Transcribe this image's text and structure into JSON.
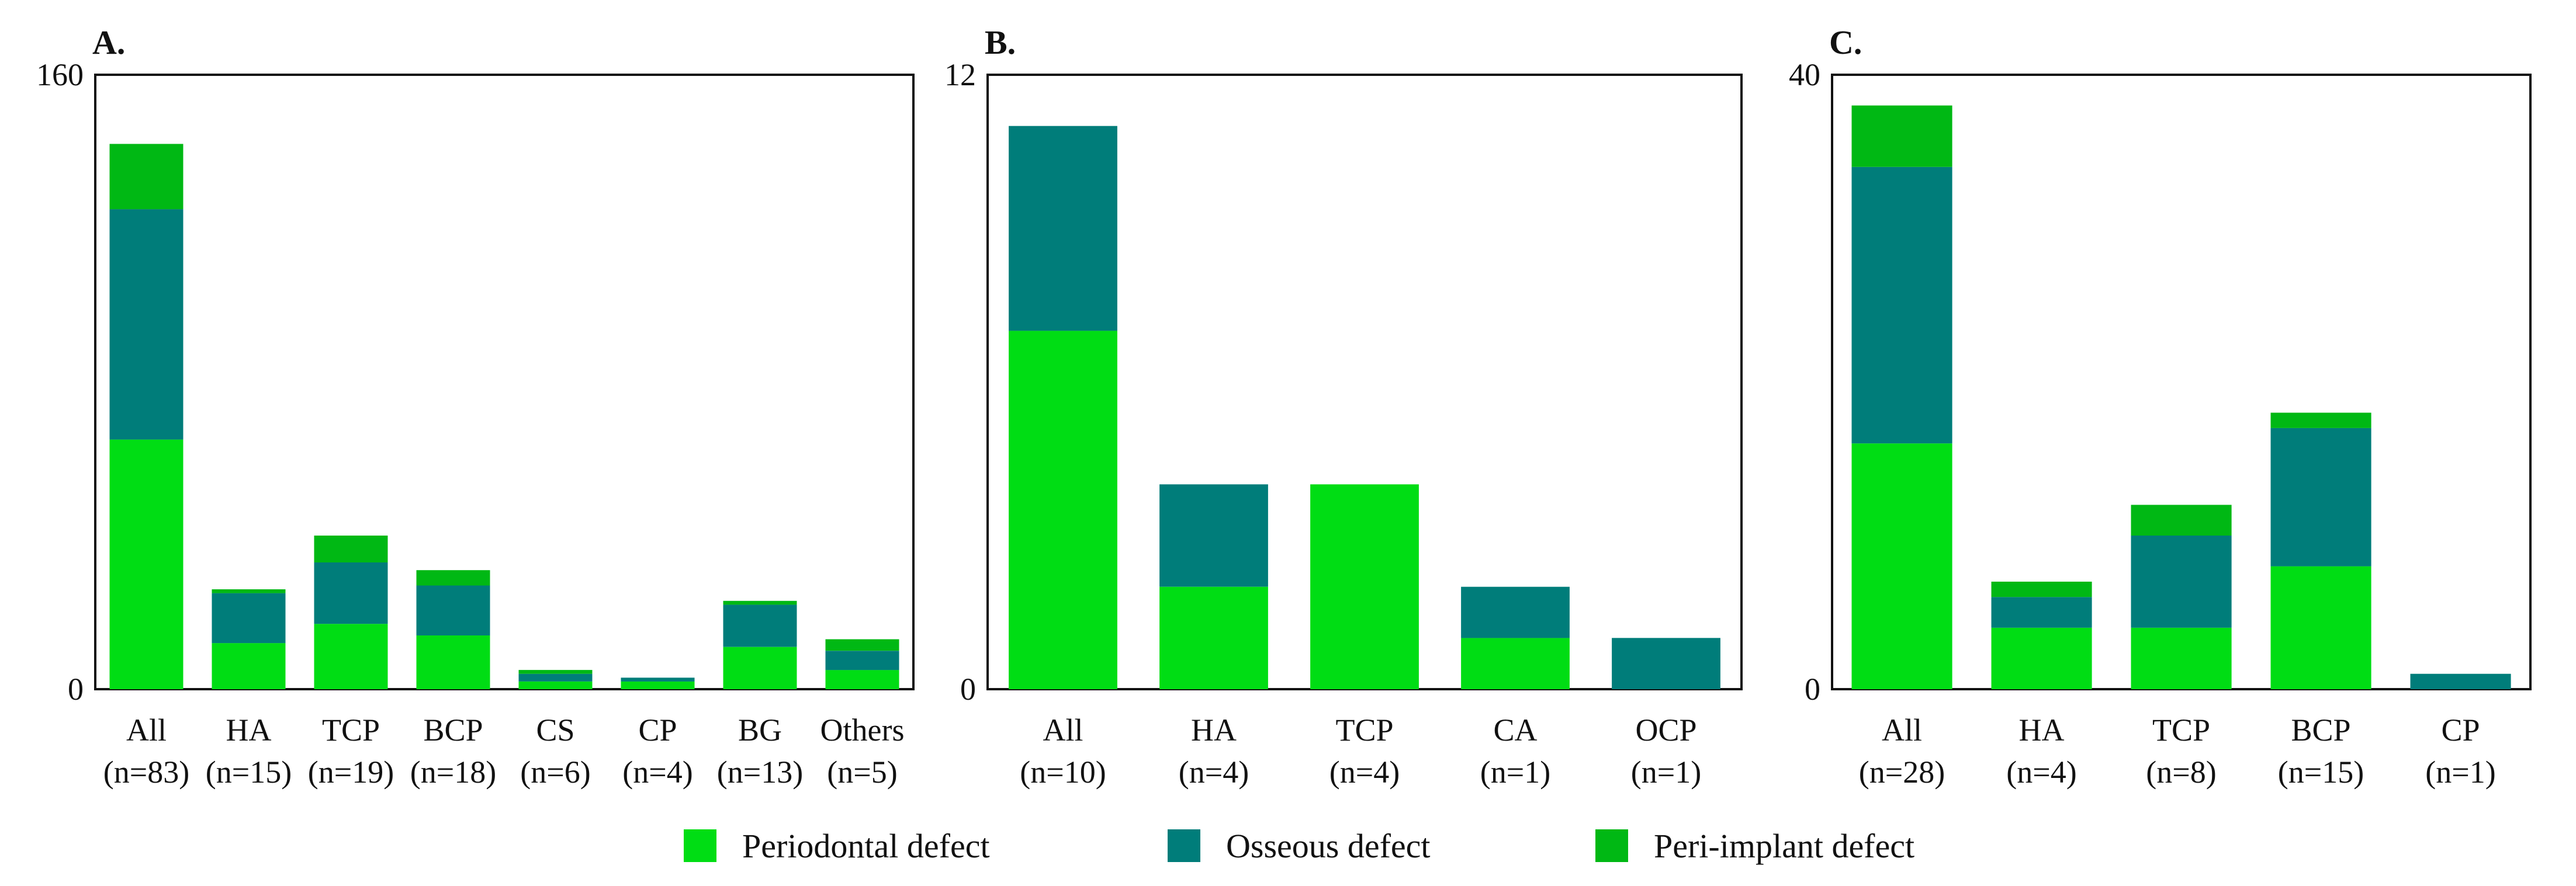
{
  "chart_data": [
    {
      "type": "bar",
      "stacked": true,
      "panel_label": "A.",
      "categories": [
        "All",
        "HA",
        "TCP",
        "BCP",
        "CS",
        "CP",
        "BG",
        "Others"
      ],
      "counts": [
        "(n=83)",
        "(n=15)",
        "(n=19)",
        "(n=18)",
        "(n=6)",
        "(n=4)",
        "(n=13)",
        "(n=5)"
      ],
      "series": [
        {
          "name": "Periodontal defect",
          "values": [
            65,
            12,
            17,
            14,
            2,
            2,
            11,
            5
          ]
        },
        {
          "name": "Osseous defect",
          "values": [
            60,
            13,
            16,
            13,
            2,
            1,
            11,
            5
          ]
        },
        {
          "name": "Peri-implant defect",
          "values": [
            17,
            1,
            7,
            4,
            1,
            0,
            1,
            3
          ]
        }
      ],
      "yticks": [
        "0",
        "160"
      ],
      "ylim": [
        0,
        160
      ]
    },
    {
      "type": "bar",
      "stacked": true,
      "panel_label": "B.",
      "categories": [
        "All",
        "HA",
        "TCP",
        "CA",
        "OCP"
      ],
      "counts": [
        "(n=10)",
        "(n=4)",
        "(n=4)",
        "(n=1)",
        "(n=1)"
      ],
      "series": [
        {
          "name": "Periodontal defect",
          "values": [
            7,
            2,
            4,
            1,
            0
          ]
        },
        {
          "name": "Osseous defect",
          "values": [
            4,
            2,
            0,
            1,
            1
          ]
        },
        {
          "name": "Peri-implant defect",
          "values": [
            0,
            0,
            0,
            0,
            0
          ]
        }
      ],
      "yticks": [
        "0",
        "12"
      ],
      "ylim": [
        0,
        12
      ]
    },
    {
      "type": "bar",
      "stacked": true,
      "panel_label": "C.",
      "categories": [
        "All",
        "HA",
        "TCP",
        "BCP",
        "CP"
      ],
      "counts": [
        "(n=28)",
        "(n=4)",
        "(n=8)",
        "(n=15)",
        "(n=1)"
      ],
      "series": [
        {
          "name": "Periodontal defect",
          "values": [
            16,
            4,
            4,
            8,
            0
          ]
        },
        {
          "name": "Osseous defect",
          "values": [
            18,
            2,
            6,
            9,
            1
          ]
        },
        {
          "name": "Peri-implant defect",
          "values": [
            4,
            1,
            2,
            1,
            0
          ]
        }
      ],
      "yticks": [
        "0",
        "40"
      ],
      "ylim": [
        0,
        40
      ]
    }
  ],
  "legend": [
    {
      "label": "Periodontal defect",
      "color": "#00DD14"
    },
    {
      "label": "Osseous defect",
      "color": "#007D7A"
    },
    {
      "label": "Peri-implant defect",
      "color": "#00B814"
    }
  ]
}
